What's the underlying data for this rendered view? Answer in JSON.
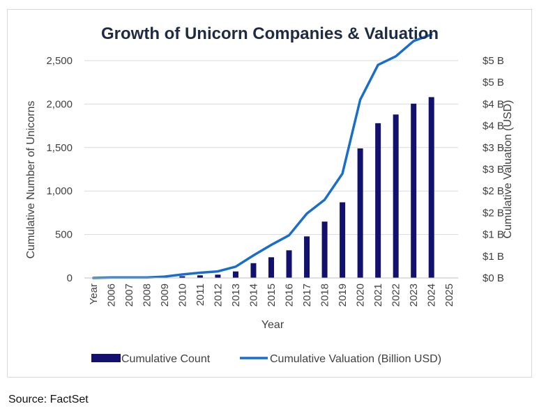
{
  "chart_data": {
    "type": "bar+line",
    "title": "Growth of Unicorn Companies & Valuation",
    "xlabel": "Year",
    "ylabel_left": "Cumulative Number of Unicorns",
    "ylabel_right": "Cumulative Valuation (USD)",
    "ylim_left": [
      0,
      2500
    ],
    "ylim_right": [
      0,
      5
    ],
    "left_ticks": [
      {
        "value": 0,
        "label": "0"
      },
      {
        "value": 500,
        "label": "500"
      },
      {
        "value": 1000,
        "label": "1,000"
      },
      {
        "value": 1500,
        "label": "1,500"
      },
      {
        "value": 2000,
        "label": "2,000"
      },
      {
        "value": 2500,
        "label": "2,500"
      }
    ],
    "right_ticks": [
      {
        "value": 0,
        "label": "$0 B"
      },
      {
        "value": 0.5,
        "label": "$1 B"
      },
      {
        "value": 1.0,
        "label": "$1 B"
      },
      {
        "value": 1.5,
        "label": "$2 B"
      },
      {
        "value": 2.0,
        "label": "$2 B"
      },
      {
        "value": 2.5,
        "label": "$3 B"
      },
      {
        "value": 3.0,
        "label": "$3 B"
      },
      {
        "value": 3.5,
        "label": "$4 B"
      },
      {
        "value": 4.0,
        "label": "$4 B"
      },
      {
        "value": 4.5,
        "label": "$5 B"
      },
      {
        "value": 5.0,
        "label": "$5 B"
      }
    ],
    "categories": [
      "Year",
      "2006",
      "2007",
      "2008",
      "2009",
      "2010",
      "2011",
      "2012",
      "2013",
      "2014",
      "2015",
      "2016",
      "2017",
      "2018",
      "2019",
      "2020",
      "2021",
      "2022",
      "2023",
      "2024",
      "2025"
    ],
    "series": [
      {
        "name": "Cumulative Count",
        "kind": "bar",
        "color": "#12126e",
        "values": [
          null,
          3,
          4,
          5,
          8,
          20,
          30,
          38,
          75,
          170,
          238,
          318,
          478,
          648,
          870,
          1490,
          1780,
          1880,
          2005,
          2080,
          null
        ]
      },
      {
        "name": "Cumulative Valuation (Billion USD)",
        "kind": "line",
        "color": "#1a6ecb",
        "values": [
          0.0,
          0.01,
          0.01,
          0.01,
          0.03,
          0.08,
          0.12,
          0.15,
          0.26,
          0.52,
          0.76,
          0.98,
          1.48,
          1.8,
          2.4,
          4.1,
          4.9,
          5.1,
          5.45,
          5.6,
          null
        ]
      }
    ]
  },
  "source": "Source: FactSet"
}
